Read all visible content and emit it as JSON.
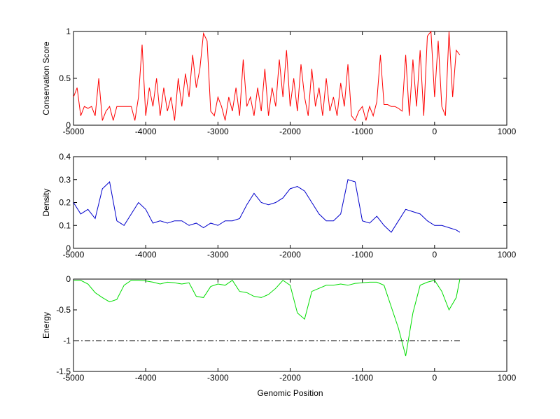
{
  "chart_data": [
    {
      "type": "line",
      "ylabel": "Conservation Score",
      "xlim": [
        -5000,
        1000
      ],
      "xticks": [
        -5000,
        -4000,
        -3000,
        -2000,
        -1000,
        0,
        1000
      ],
      "ylim": [
        0,
        1
      ],
      "yticks": [
        0,
        0.5,
        1
      ],
      "series": [
        {
          "color": "#ff0000",
          "dash": "none",
          "x": [
            -5000,
            -4950,
            -4900,
            -4850,
            -4800,
            -4750,
            -4700,
            -4650,
            -4600,
            -4550,
            -4500,
            -4450,
            -4400,
            -4350,
            -4300,
            -4250,
            -4200,
            -4150,
            -4100,
            -4050,
            -4000,
            -3950,
            -3900,
            -3850,
            -3800,
            -3750,
            -3700,
            -3650,
            -3600,
            -3550,
            -3500,
            -3450,
            -3400,
            -3350,
            -3300,
            -3250,
            -3200,
            -3150,
            -3100,
            -3050,
            -3000,
            -2950,
            -2900,
            -2850,
            -2800,
            -2750,
            -2700,
            -2650,
            -2600,
            -2550,
            -2500,
            -2450,
            -2400,
            -2350,
            -2300,
            -2250,
            -2200,
            -2150,
            -2100,
            -2050,
            -2000,
            -1950,
            -1900,
            -1850,
            -1800,
            -1750,
            -1700,
            -1650,
            -1600,
            -1550,
            -1500,
            -1450,
            -1400,
            -1350,
            -1300,
            -1250,
            -1200,
            -1150,
            -1100,
            -1050,
            -1000,
            -950,
            -900,
            -850,
            -800,
            -750,
            -700,
            -650,
            -600,
            -550,
            -500,
            -450,
            -400,
            -350,
            -300,
            -250,
            -200,
            -150,
            -100,
            -50,
            0,
            50,
            100,
            150,
            200,
            250,
            300,
            350
          ],
          "values": [
            0.3,
            0.4,
            0.1,
            0.2,
            0.18,
            0.2,
            0.1,
            0.5,
            0.05,
            0.15,
            0.2,
            0.05,
            0.2,
            0.2,
            0.2,
            0.2,
            0.2,
            0.05,
            0.3,
            0.86,
            0.1,
            0.4,
            0.2,
            0.5,
            0.1,
            0.4,
            0.15,
            0.3,
            0.05,
            0.5,
            0.2,
            0.55,
            0.3,
            0.75,
            0.4,
            0.6,
            0.98,
            0.9,
            0.15,
            0.1,
            0.3,
            0.2,
            0.05,
            0.3,
            0.15,
            0.4,
            0.1,
            0.7,
            0.2,
            0.3,
            0.1,
            0.4,
            0.15,
            0.6,
            0.1,
            0.4,
            0.2,
            0.7,
            0.3,
            0.8,
            0.2,
            0.5,
            0.15,
            0.65,
            0.3,
            0.1,
            0.6,
            0.2,
            0.4,
            0.1,
            0.5,
            0.15,
            0.3,
            0.1,
            0.45,
            0.2,
            0.65,
            0.1,
            0.05,
            0.15,
            0.2,
            0.05,
            0.2,
            0.1,
            0.25,
            0.75,
            0.22,
            0.22,
            0.2,
            0.2,
            0.18,
            0.15,
            0.75,
            0.1,
            0.7,
            0.2,
            0.8,
            0.1,
            0.95,
            1,
            0.3,
            0.9,
            0.2,
            0.1,
            1,
            0.3,
            0.8,
            0.75
          ]
        }
      ]
    },
    {
      "type": "line",
      "ylabel": "Density",
      "xlim": [
        -5000,
        1000
      ],
      "xticks": [
        -5000,
        -4000,
        -3000,
        -2000,
        -1000,
        0,
        1000
      ],
      "ylim": [
        0,
        0.4
      ],
      "yticks": [
        0,
        0.1,
        0.2,
        0.3,
        0.4
      ],
      "series": [
        {
          "color": "#0000cc",
          "dash": "none",
          "x": [
            -5000,
            -4900,
            -4800,
            -4700,
            -4600,
            -4500,
            -4400,
            -4300,
            -4200,
            -4100,
            -4000,
            -3900,
            -3800,
            -3700,
            -3600,
            -3500,
            -3400,
            -3300,
            -3200,
            -3100,
            -3000,
            -2900,
            -2800,
            -2700,
            -2600,
            -2500,
            -2400,
            -2300,
            -2200,
            -2100,
            -2000,
            -1900,
            -1800,
            -1700,
            -1600,
            -1500,
            -1400,
            -1300,
            -1200,
            -1100,
            -1000,
            -900,
            -800,
            -700,
            -600,
            -500,
            -400,
            -300,
            -200,
            -100,
            0,
            100,
            200,
            300,
            350
          ],
          "values": [
            0.2,
            0.15,
            0.17,
            0.13,
            0.26,
            0.29,
            0.12,
            0.1,
            0.15,
            0.2,
            0.17,
            0.11,
            0.12,
            0.11,
            0.12,
            0.12,
            0.1,
            0.11,
            0.09,
            0.11,
            0.1,
            0.12,
            0.12,
            0.13,
            0.19,
            0.24,
            0.2,
            0.19,
            0.2,
            0.22,
            0.26,
            0.27,
            0.25,
            0.2,
            0.15,
            0.12,
            0.12,
            0.15,
            0.3,
            0.29,
            0.12,
            0.11,
            0.14,
            0.1,
            0.07,
            0.12,
            0.17,
            0.16,
            0.15,
            0.12,
            0.1,
            0.1,
            0.09,
            0.08,
            0.07
          ]
        }
      ]
    },
    {
      "type": "line",
      "ylabel": "Energy",
      "xlabel": "Genomic Position",
      "xlim": [
        -5000,
        1000
      ],
      "xticks": [
        -5000,
        -4000,
        -3000,
        -2000,
        -1000,
        0,
        1000
      ],
      "ylim": [
        -1.5,
        0
      ],
      "yticks": [
        -1.5,
        -1,
        -0.5,
        0
      ],
      "series": [
        {
          "color": "#00dd00",
          "dash": "none",
          "x": [
            -5000,
            -4900,
            -4800,
            -4700,
            -4600,
            -4500,
            -4400,
            -4300,
            -4200,
            -4100,
            -4000,
            -3900,
            -3800,
            -3700,
            -3600,
            -3500,
            -3400,
            -3300,
            -3200,
            -3100,
            -3000,
            -2900,
            -2800,
            -2700,
            -2600,
            -2500,
            -2400,
            -2300,
            -2200,
            -2100,
            -2000,
            -1900,
            -1800,
            -1700,
            -1600,
            -1500,
            -1400,
            -1300,
            -1200,
            -1100,
            -1000,
            -900,
            -800,
            -700,
            -600,
            -500,
            -400,
            -300,
            -200,
            -100,
            0,
            100,
            200,
            300,
            350
          ],
          "values": [
            -0.02,
            -0.02,
            -0.08,
            -0.22,
            -0.3,
            -0.37,
            -0.33,
            -0.1,
            -0.02,
            -0.02,
            -0.03,
            -0.05,
            -0.08,
            -0.05,
            -0.06,
            -0.08,
            -0.06,
            -0.28,
            -0.3,
            -0.12,
            -0.08,
            -0.1,
            -0.02,
            -0.2,
            -0.22,
            -0.28,
            -0.3,
            -0.25,
            -0.15,
            -0.02,
            -0.1,
            -0.55,
            -0.65,
            -0.2,
            -0.15,
            -0.1,
            -0.1,
            -0.08,
            -0.1,
            -0.07,
            -0.06,
            -0.05,
            -0.05,
            -0.1,
            -0.45,
            -0.8,
            -1.25,
            -0.55,
            -0.1,
            -0.05,
            -0.02,
            -0.2,
            -0.5,
            -0.3,
            0
          ]
        },
        {
          "color": "#000000",
          "dash": "8,3,2,3",
          "x": [
            -5000,
            350
          ],
          "values": [
            -1,
            -1
          ]
        }
      ]
    }
  ]
}
